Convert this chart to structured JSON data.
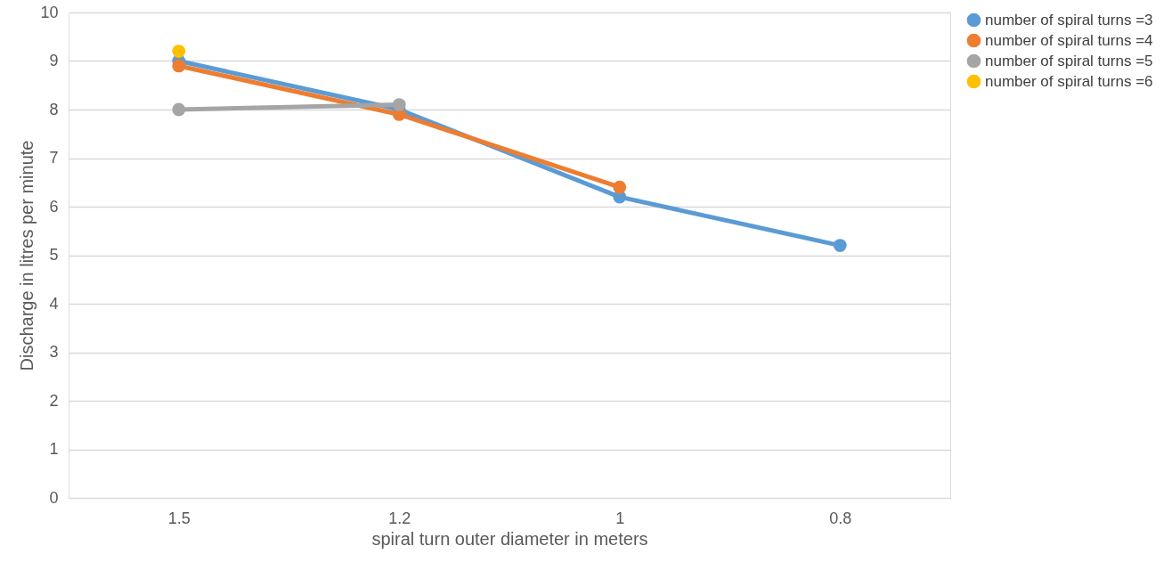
{
  "chart_data": {
    "type": "line",
    "xlabel": "spiral turn outer diameter in meters",
    "ylabel": "Discharge in litres per minute",
    "categories": [
      "1.5",
      "1.2",
      "1",
      "0.8"
    ],
    "series": [
      {
        "name": "number of spiral turns =3",
        "color": "#5b9bd5",
        "values": [
          9.0,
          8.0,
          6.2,
          5.2
        ]
      },
      {
        "name": "number of spiral turns =4",
        "color": "#ed7d31",
        "values": [
          8.9,
          7.9,
          6.4,
          null
        ]
      },
      {
        "name": "number of spiral turns =5",
        "color": "#a5a5a5",
        "values": [
          8.0,
          8.1,
          null,
          null
        ]
      },
      {
        "name": "number of spiral turns =6",
        "color": "#ffc000",
        "values": [
          9.2,
          null,
          null,
          null
        ]
      }
    ],
    "ylim": [
      0,
      10
    ],
    "yticks": [
      0,
      1,
      2,
      3,
      4,
      5,
      6,
      7,
      8,
      9,
      10
    ],
    "grid": "y",
    "legend": "right",
    "marker": "circle",
    "line_style": "solid"
  }
}
